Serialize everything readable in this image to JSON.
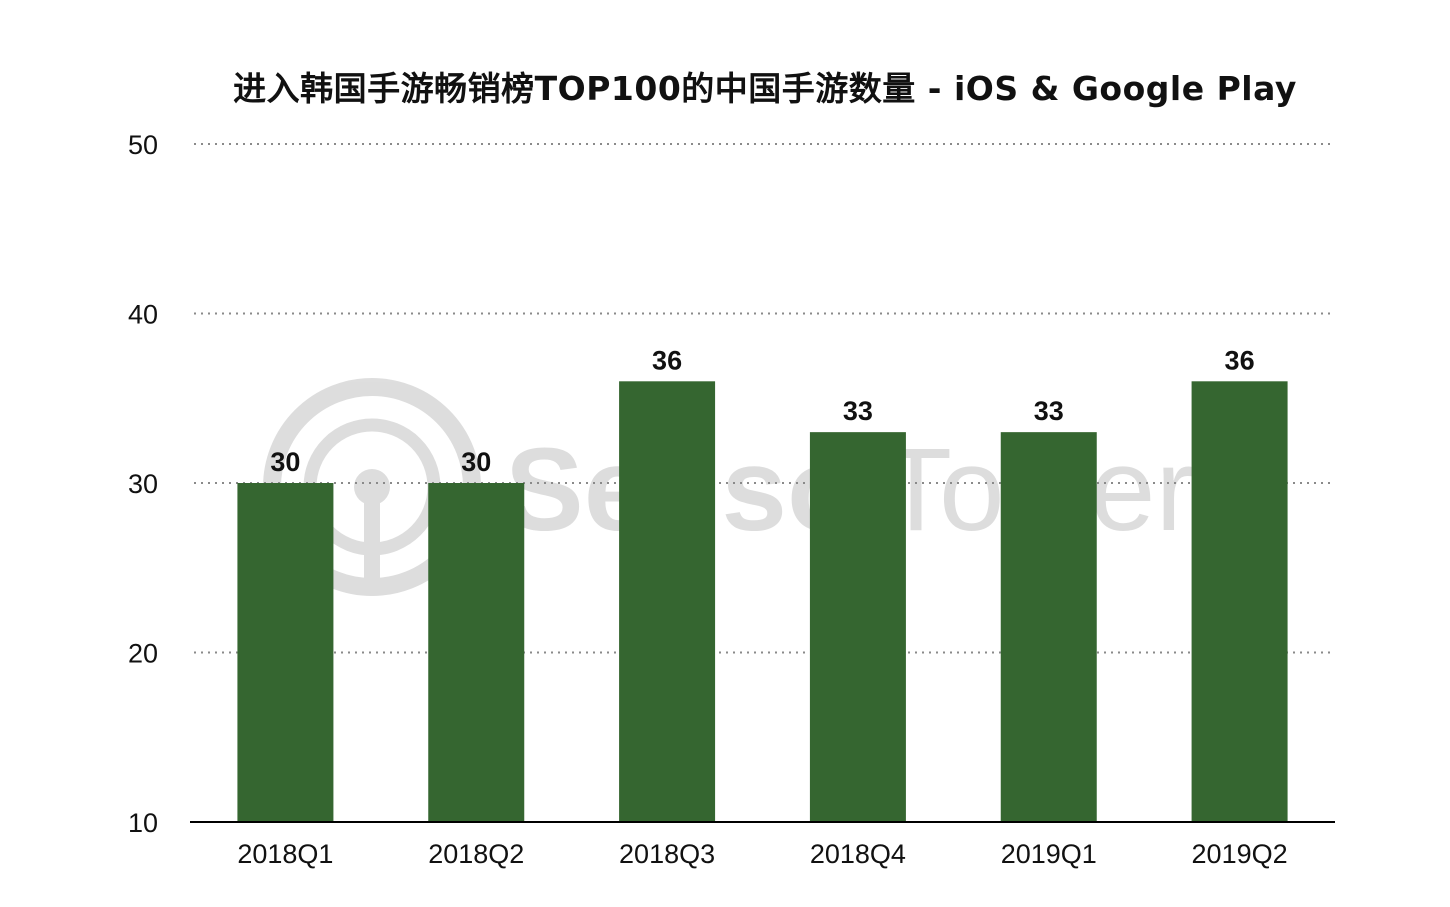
{
  "chart_data": {
    "type": "bar",
    "title": "进入韩国手游畅销榜TOP100的中国手游数量 - iOS & Google Play",
    "xlabel": "",
    "ylabel": "",
    "categories": [
      "2018Q1",
      "2018Q2",
      "2018Q3",
      "2018Q4",
      "2019Q1",
      "2019Q2"
    ],
    "values": [
      30,
      30,
      36,
      33,
      33,
      36
    ],
    "ylim": [
      10,
      50
    ],
    "yticks": [
      10,
      20,
      30,
      40,
      50
    ],
    "grid": true,
    "legend": "none",
    "data_labels": true,
    "bar_color": "#356630"
  },
  "watermark": {
    "text_left": "Sensor",
    "text_right": "Tower"
  }
}
